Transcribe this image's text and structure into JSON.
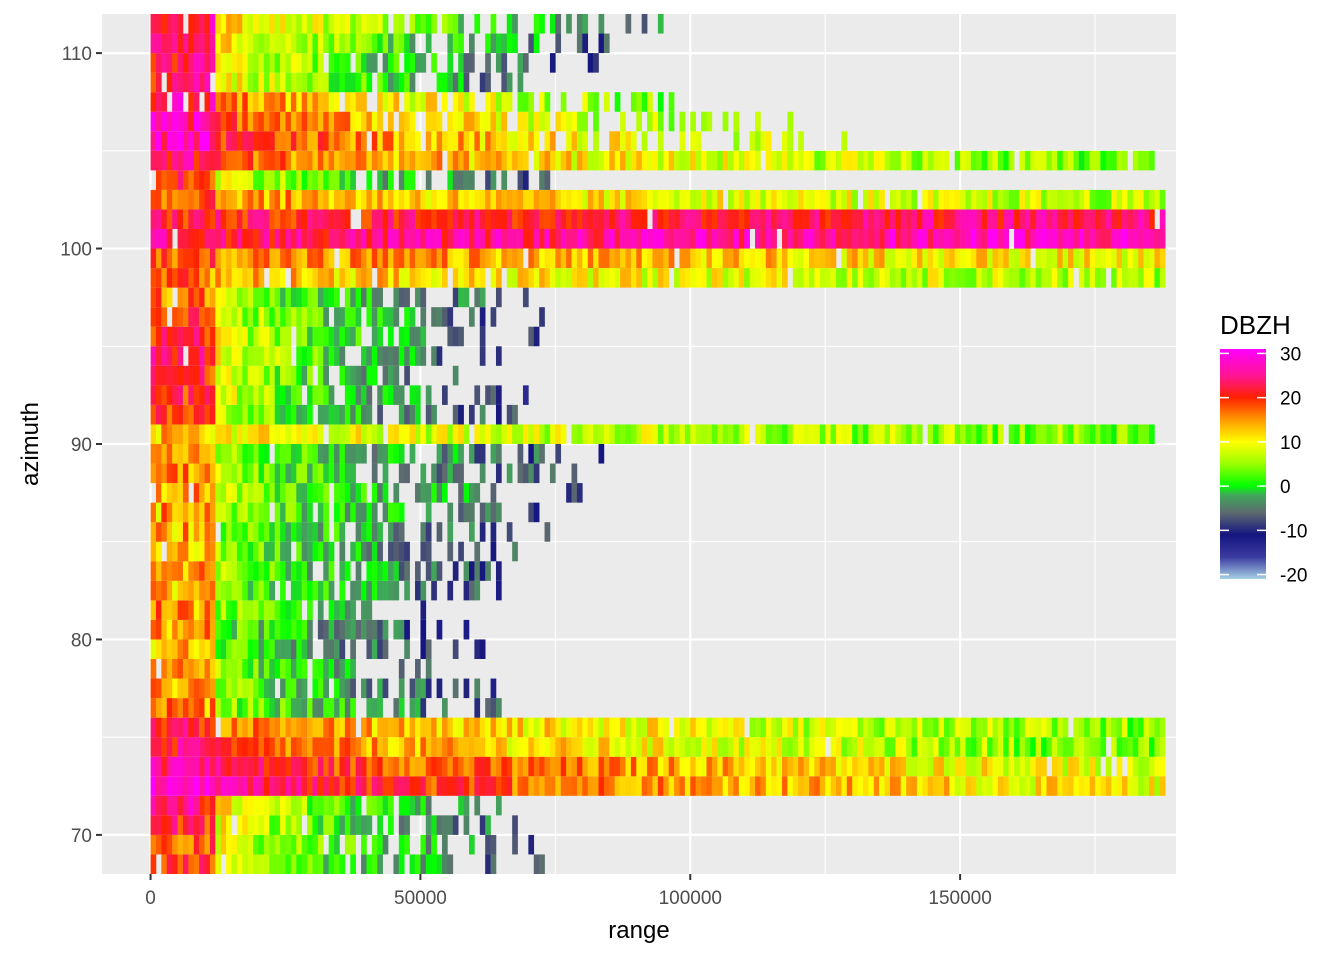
{
  "chart_data": {
    "type": "heatmap",
    "xlabel": "range",
    "ylabel": "azimuth",
    "xlim": [
      -9000,
      190000
    ],
    "ylim": [
      68,
      112
    ],
    "x_ticks": [
      0,
      50000,
      100000,
      150000
    ],
    "x_tick_labels": [
      "0",
      "50000",
      "100000",
      "150000"
    ],
    "y_ticks": [
      70,
      80,
      90,
      100,
      110
    ],
    "y_tick_labels": [
      "70",
      "80",
      "90",
      "100",
      "110"
    ],
    "grid": true,
    "panel_background": "#ebebeb",
    "range_max": 188000,
    "cell_range_step": 1000,
    "azimuth_step": 1,
    "legend": {
      "title": "DBZH",
      "position": "right",
      "ticks": [
        30,
        20,
        10,
        0,
        -10,
        -20
      ],
      "tick_labels": [
        "30",
        "20",
        "10",
        "0",
        "-10",
        "-20"
      ],
      "min": -21,
      "max": 31,
      "colors": [
        {
          "value": -21,
          "color": "#a6d1e5"
        },
        {
          "value": -16,
          "color": "#3a3aa0"
        },
        {
          "value": -11,
          "color": "#15157f"
        },
        {
          "value": -6,
          "color": "#5d6a70"
        },
        {
          "value": -2,
          "color": "#3fa85a"
        },
        {
          "value": 0,
          "color": "#00ff00"
        },
        {
          "value": 5,
          "color": "#99ff00"
        },
        {
          "value": 10,
          "color": "#ffff00"
        },
        {
          "value": 15,
          "color": "#ff9900"
        },
        {
          "value": 20,
          "color": "#ff2200"
        },
        {
          "value": 25,
          "color": "#ff1493"
        },
        {
          "value": 31,
          "color": "#ff00ff"
        }
      ]
    },
    "azimuth_rows": [
      {
        "azimuth": 68,
        "extent": 76000,
        "near_dbz": 18,
        "far_dbz": -8
      },
      {
        "azimuth": 69,
        "extent": 75000,
        "near_dbz": 18,
        "far_dbz": -7
      },
      {
        "azimuth": 70,
        "extent": 74000,
        "near_dbz": 20,
        "far_dbz": -8
      },
      {
        "azimuth": 71,
        "extent": 70000,
        "near_dbz": 22,
        "far_dbz": -7
      },
      {
        "azimuth": 72,
        "extent": 188000,
        "near_dbz": 28,
        "far_dbz": 9
      },
      {
        "azimuth": 73,
        "extent": 188000,
        "near_dbz": 26,
        "far_dbz": 8
      },
      {
        "azimuth": 74,
        "extent": 188000,
        "near_dbz": 22,
        "far_dbz": 3
      },
      {
        "azimuth": 75,
        "extent": 188000,
        "near_dbz": 20,
        "far_dbz": 4
      },
      {
        "azimuth": 76,
        "extent": 70000,
        "near_dbz": 14,
        "far_dbz": -9
      },
      {
        "azimuth": 77,
        "extent": 68000,
        "near_dbz": 14,
        "far_dbz": -10
      },
      {
        "azimuth": 78,
        "extent": 60000,
        "near_dbz": 14,
        "far_dbz": -10
      },
      {
        "azimuth": 79,
        "extent": 62000,
        "near_dbz": 13,
        "far_dbz": -11
      },
      {
        "azimuth": 80,
        "extent": 60000,
        "near_dbz": 13,
        "far_dbz": -10
      },
      {
        "azimuth": 81,
        "extent": 62000,
        "near_dbz": 15,
        "far_dbz": -10
      },
      {
        "azimuth": 82,
        "extent": 66000,
        "near_dbz": 14,
        "far_dbz": -9
      },
      {
        "azimuth": 83,
        "extent": 70000,
        "near_dbz": 14,
        "far_dbz": -9
      },
      {
        "azimuth": 84,
        "extent": 70000,
        "near_dbz": 13,
        "far_dbz": -9
      },
      {
        "azimuth": 85,
        "extent": 74000,
        "near_dbz": 13,
        "far_dbz": -9
      },
      {
        "azimuth": 86,
        "extent": 76000,
        "near_dbz": 13,
        "far_dbz": -8
      },
      {
        "azimuth": 87,
        "extent": 80000,
        "near_dbz": 14,
        "far_dbz": -8
      },
      {
        "azimuth": 88,
        "extent": 80000,
        "near_dbz": 14,
        "far_dbz": -9
      },
      {
        "azimuth": 89,
        "extent": 84000,
        "near_dbz": 14,
        "far_dbz": -9
      },
      {
        "azimuth": 90,
        "extent": 186000,
        "near_dbz": 12,
        "far_dbz": 4
      },
      {
        "azimuth": 91,
        "extent": 70000,
        "near_dbz": 18,
        "far_dbz": -10
      },
      {
        "azimuth": 92,
        "extent": 70000,
        "near_dbz": 20,
        "far_dbz": -10
      },
      {
        "azimuth": 93,
        "extent": 64000,
        "near_dbz": 20,
        "far_dbz": -9
      },
      {
        "azimuth": 94,
        "extent": 66000,
        "near_dbz": 22,
        "far_dbz": -9
      },
      {
        "azimuth": 95,
        "extent": 72000,
        "near_dbz": 20,
        "far_dbz": -9
      },
      {
        "azimuth": 96,
        "extent": 74000,
        "near_dbz": 18,
        "far_dbz": -9
      },
      {
        "azimuth": 97,
        "extent": 76000,
        "near_dbz": 16,
        "far_dbz": -9
      },
      {
        "azimuth": 98,
        "extent": 188000,
        "near_dbz": 16,
        "far_dbz": 6
      },
      {
        "azimuth": 99,
        "extent": 188000,
        "near_dbz": 18,
        "far_dbz": 10
      },
      {
        "azimuth": 100,
        "extent": 188000,
        "near_dbz": 22,
        "far_dbz": 27
      },
      {
        "azimuth": 101,
        "extent": 188000,
        "near_dbz": 20,
        "far_dbz": 24
      },
      {
        "azimuth": 102,
        "extent": 188000,
        "near_dbz": 18,
        "far_dbz": 6
      },
      {
        "azimuth": 103,
        "extent": 82000,
        "near_dbz": 20,
        "far_dbz": -10
      },
      {
        "azimuth": 104,
        "extent": 186000,
        "near_dbz": 22,
        "far_dbz": 3
      },
      {
        "azimuth": 105,
        "extent": 130000,
        "near_dbz": 26,
        "far_dbz": 6
      },
      {
        "azimuth": 106,
        "extent": 120000,
        "near_dbz": 26,
        "far_dbz": 3
      },
      {
        "azimuth": 107,
        "extent": 110000,
        "near_dbz": 24,
        "far_dbz": 2
      },
      {
        "azimuth": 108,
        "extent": 80000,
        "near_dbz": 22,
        "far_dbz": -9
      },
      {
        "azimuth": 109,
        "extent": 84000,
        "near_dbz": 22,
        "far_dbz": -9
      },
      {
        "azimuth": 110,
        "extent": 90000,
        "near_dbz": 22,
        "far_dbz": -8
      },
      {
        "azimuth": 111,
        "extent": 100000,
        "near_dbz": 22,
        "far_dbz": -6
      }
    ]
  }
}
